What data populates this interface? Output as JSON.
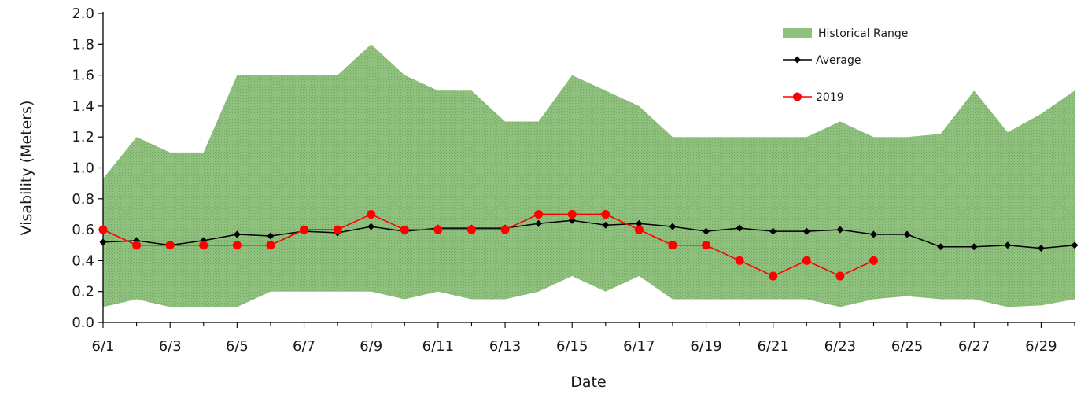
{
  "chart_data": {
    "type": "area",
    "title": "",
    "xlabel": "Date",
    "ylabel": "Visability (Meters)",
    "ylim": [
      0,
      2.0
    ],
    "yticks": [
      "0.0",
      "0.2",
      "0.4",
      "0.6",
      "0.8",
      "1.0",
      "1.2",
      "1.4",
      "1.6",
      "1.8",
      "2.0"
    ],
    "x": [
      "6/1",
      "6/2",
      "6/3",
      "6/4",
      "6/5",
      "6/6",
      "6/7",
      "6/8",
      "6/9",
      "6/10",
      "6/11",
      "6/12",
      "6/13",
      "6/14",
      "6/15",
      "6/16",
      "6/17",
      "6/18",
      "6/19",
      "6/20",
      "6/21",
      "6/22",
      "6/23",
      "6/24",
      "6/25",
      "6/26",
      "6/27",
      "6/28",
      "6/29",
      "6/30"
    ],
    "xtick_labels": [
      "6/1",
      "6/3",
      "6/5",
      "6/7",
      "6/9",
      "6/11",
      "6/13",
      "6/15",
      "6/17",
      "6/19",
      "6/21",
      "6/23",
      "6/25",
      "6/27",
      "6/29"
    ],
    "grid": false,
    "legend_position": "top-right",
    "series": [
      {
        "name": "Historical Range",
        "kind": "range",
        "color": "#8fc07e",
        "upper": [
          0.93,
          1.2,
          1.1,
          1.1,
          1.6,
          1.6,
          1.6,
          1.6,
          1.8,
          1.6,
          1.5,
          1.5,
          1.3,
          1.3,
          1.6,
          1.5,
          1.4,
          1.2,
          1.2,
          1.2,
          1.2,
          1.2,
          1.3,
          1.2,
          1.2,
          1.22,
          1.5,
          1.23,
          1.35,
          1.5
        ],
        "lower": [
          0.1,
          0.15,
          0.1,
          0.1,
          0.1,
          0.2,
          0.2,
          0.2,
          0.2,
          0.15,
          0.2,
          0.15,
          0.15,
          0.2,
          0.3,
          0.2,
          0.3,
          0.15,
          0.15,
          0.15,
          0.15,
          0.15,
          0.1,
          0.15,
          0.17,
          0.15,
          0.15,
          0.1,
          0.11,
          0.15
        ]
      },
      {
        "name": "Average",
        "kind": "line",
        "color": "#000000",
        "values": [
          0.52,
          0.53,
          0.5,
          0.53,
          0.57,
          0.56,
          0.59,
          0.58,
          0.62,
          0.59,
          0.61,
          0.61,
          0.61,
          0.64,
          0.66,
          0.63,
          0.64,
          0.62,
          0.59,
          0.61,
          0.59,
          0.59,
          0.6,
          0.57,
          0.57,
          0.49,
          0.49,
          0.5,
          0.48,
          0.5
        ]
      },
      {
        "name": "2019",
        "kind": "line",
        "color": "#ff0000",
        "values": [
          0.6,
          0.5,
          0.5,
          0.5,
          0.5,
          0.5,
          0.6,
          0.6,
          0.7,
          0.6,
          0.6,
          0.6,
          0.6,
          0.7,
          0.7,
          0.7,
          0.6,
          0.5,
          0.5,
          0.4,
          0.3,
          0.4,
          0.3,
          0.4,
          null,
          null,
          null,
          null,
          null,
          null
        ]
      }
    ]
  }
}
